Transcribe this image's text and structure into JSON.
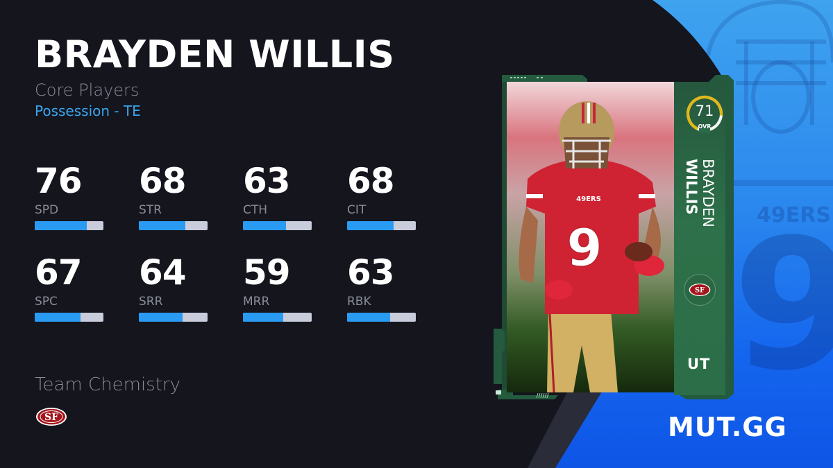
{
  "header": {
    "player_name": "BRAYDEN WILLIS",
    "program": "Core Players",
    "archetype": "Possession - TE"
  },
  "stats": [
    {
      "value": "76",
      "label": "SPD",
      "pct": 76
    },
    {
      "value": "68",
      "label": "STR",
      "pct": 68
    },
    {
      "value": "63",
      "label": "CTH",
      "pct": 63
    },
    {
      "value": "68",
      "label": "CIT",
      "pct": 68
    },
    {
      "value": "67",
      "label": "SPC",
      "pct": 67
    },
    {
      "value": "64",
      "label": "SRR",
      "pct": 64
    },
    {
      "value": "59",
      "label": "MRR",
      "pct": 59
    },
    {
      "value": "63",
      "label": "RBK",
      "pct": 63
    }
  ],
  "chemistry": {
    "title": "Team Chemistry",
    "team_icon": "49ers-logo-icon"
  },
  "card": {
    "ovr": "71",
    "ovr_label": "OVR",
    "first_name": "BRAYDEN",
    "last_name": "WILLIS",
    "jersey_number": "9",
    "jersey_text": "49ERS",
    "tier": "UT",
    "team_icon": "49ers-logo-icon",
    "frame_color": "#2b6b47",
    "ovr_ring_color": "#e1b817"
  },
  "watermark": {
    "number": "9"
  },
  "brand": {
    "label": "MUT.GG"
  },
  "colors": {
    "background": "#14151d",
    "accent_blue": "#2a9bf2",
    "bar_track": "#c9ccdb",
    "muted_text": "#8a8d98",
    "archetype_text": "#3ba6f0",
    "panel_blue": "#1b6ff0"
  }
}
